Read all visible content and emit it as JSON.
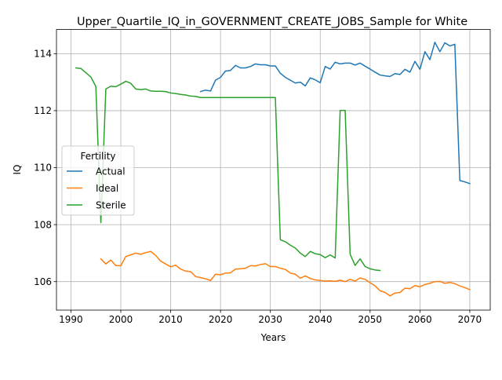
{
  "chart_data": {
    "type": "line",
    "title": "Upper_Quartile_IQ_in_GOVERNMENT_CREATE_JOBS_Sample for White",
    "xlabel": "Years",
    "ylabel": "IQ",
    "xlim": [
      1987.1,
      2074.1
    ],
    "ylim": [
      105.0,
      114.85
    ],
    "xticks": [
      1990,
      2000,
      2010,
      2020,
      2030,
      2040,
      2050,
      2060,
      2070
    ],
    "yticks": [
      106,
      108,
      110,
      112,
      114
    ],
    "grid": true,
    "legend": {
      "title": "Fertility",
      "position": "center-left"
    },
    "series": [
      {
        "name": "Actual",
        "color": "#1f77b4",
        "x": [
          2016,
          2017,
          2018,
          2019,
          2020,
          2021,
          2022,
          2023,
          2024,
          2025,
          2026,
          2027,
          2028,
          2029,
          2030,
          2031,
          2032,
          2033,
          2034,
          2035,
          2036,
          2037,
          2038,
          2039,
          2040,
          2041,
          2042,
          2043,
          2044,
          2045,
          2046,
          2047,
          2048,
          2049,
          2050,
          2051,
          2052,
          2053,
          2054,
          2055,
          2056,
          2057,
          2058,
          2059,
          2060,
          2061,
          2062,
          2063,
          2064,
          2065,
          2066,
          2067,
          2068,
          2069,
          2070
        ],
        "y": [
          112.67,
          112.72,
          112.69,
          113.07,
          113.17,
          113.39,
          113.41,
          113.59,
          113.5,
          113.5,
          113.55,
          113.64,
          113.61,
          113.61,
          113.57,
          113.57,
          113.31,
          113.17,
          113.07,
          112.97,
          113.0,
          112.87,
          113.15,
          113.08,
          112.98,
          113.55,
          113.46,
          113.7,
          113.64,
          113.67,
          113.67,
          113.6,
          113.67,
          113.56,
          113.46,
          113.35,
          113.25,
          113.22,
          113.2,
          113.3,
          113.27,
          113.45,
          113.35,
          113.73,
          113.45,
          114.07,
          113.79,
          114.4,
          114.07,
          114.38,
          114.27,
          114.33,
          109.55,
          109.5,
          109.44
        ]
      },
      {
        "name": "Ideal",
        "color": "#ff7f0e",
        "x": [
          1996,
          1997,
          1998,
          1999,
          2000,
          2001,
          2002,
          2003,
          2004,
          2005,
          2006,
          2007,
          2008,
          2009,
          2010,
          2011,
          2012,
          2013,
          2014,
          2015,
          2016,
          2017,
          2018,
          2019,
          2020,
          2021,
          2022,
          2023,
          2024,
          2025,
          2026,
          2027,
          2028,
          2029,
          2030,
          2031,
          2032,
          2033,
          2034,
          2035,
          2036,
          2037,
          2038,
          2039,
          2040,
          2041,
          2042,
          2043,
          2044,
          2045,
          2046,
          2047,
          2048,
          2049,
          2050,
          2051,
          2052,
          2053,
          2054,
          2055,
          2056,
          2057,
          2058,
          2059,
          2060,
          2061,
          2062,
          2063,
          2064,
          2065,
          2066,
          2067,
          2068,
          2069,
          2070
        ],
        "y": [
          106.8,
          106.62,
          106.76,
          106.56,
          106.56,
          106.88,
          106.94,
          107.0,
          106.96,
          107.02,
          107.06,
          106.92,
          106.72,
          106.62,
          106.52,
          106.58,
          106.44,
          106.37,
          106.35,
          106.18,
          106.14,
          106.1,
          106.04,
          106.26,
          106.24,
          106.3,
          106.31,
          106.44,
          106.45,
          106.47,
          106.56,
          106.55,
          106.6,
          106.63,
          106.53,
          106.53,
          106.47,
          106.43,
          106.3,
          106.26,
          106.12,
          106.2,
          106.11,
          106.06,
          106.04,
          106.02,
          106.03,
          106.01,
          106.05,
          106.0,
          106.08,
          106.02,
          106.13,
          106.08,
          105.96,
          105.85,
          105.68,
          105.62,
          105.5,
          105.6,
          105.62,
          105.77,
          105.75,
          105.86,
          105.82,
          105.9,
          105.94,
          106.0,
          106.01,
          105.94,
          105.97,
          105.93,
          105.85,
          105.79,
          105.72
        ]
      },
      {
        "name": "Sterile",
        "color": "#2ca02c",
        "x": [
          1991,
          1992,
          1993,
          1994,
          1995,
          1996,
          1997,
          1998,
          1999,
          2000,
          2001,
          2002,
          2003,
          2004,
          2005,
          2006,
          2007,
          2008,
          2009,
          2010,
          2011,
          2012,
          2013,
          2014,
          2015,
          2016,
          2017,
          2018,
          2019,
          2020,
          2021,
          2022,
          2023,
          2024,
          2025,
          2026,
          2027,
          2028,
          2029,
          2030,
          2031,
          2032,
          2033,
          2034,
          2035,
          2036,
          2037,
          2038,
          2039,
          2040,
          2041,
          2042,
          2043,
          2044,
          2045,
          2046,
          2047,
          2048,
          2049,
          2050,
          2051,
          2052
        ],
        "y": [
          113.5,
          113.48,
          113.33,
          113.18,
          112.85,
          108.07,
          112.76,
          112.86,
          112.84,
          112.93,
          113.03,
          112.96,
          112.76,
          112.74,
          112.76,
          112.69,
          112.68,
          112.68,
          112.67,
          112.62,
          112.6,
          112.57,
          112.55,
          112.51,
          112.5,
          112.46,
          112.46,
          112.46,
          112.46,
          112.46,
          112.46,
          112.46,
          112.46,
          112.46,
          112.46,
          112.46,
          112.46,
          112.46,
          112.46,
          112.46,
          112.46,
          107.47,
          107.4,
          107.28,
          107.18,
          107.0,
          106.88,
          107.06,
          106.98,
          106.95,
          106.84,
          106.94,
          106.83,
          112.01,
          112.01,
          106.96,
          106.57,
          106.8,
          106.53,
          106.45,
          106.41,
          106.39
        ]
      }
    ]
  }
}
